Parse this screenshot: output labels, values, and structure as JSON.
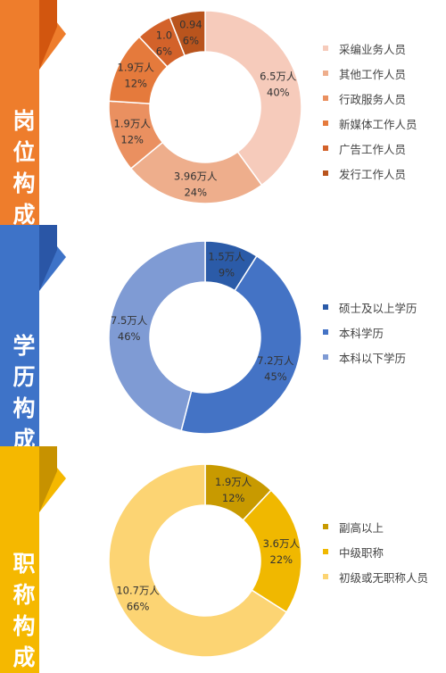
{
  "colors": {
    "orange_band": "#ee7d2c",
    "orange_dark": "#d2560f",
    "blue_band": "#3e73c8",
    "blue_dark": "#2a56a6",
    "yellow_band": "#f5b800",
    "yellow_dark": "#c79200"
  },
  "sections": [
    {
      "title": "岗位构成",
      "title_chars": [
        "岗",
        "位",
        "构",
        "成"
      ]
    },
    {
      "title": "学历构成",
      "title_chars": [
        "学",
        "历",
        "构",
        "成"
      ]
    },
    {
      "title": "职称构成",
      "title_chars": [
        "职",
        "称",
        "构",
        "成"
      ]
    }
  ],
  "chart_data": [
    {
      "type": "pie",
      "title": "岗位构成",
      "donut": true,
      "slices": [
        {
          "name": "采编业务人员",
          "value": 6.5,
          "value_label": "6.5万人",
          "percent": 40,
          "percent_label": "40%",
          "color": "#f6cbbb"
        },
        {
          "name": "其他工作人员",
          "value": 3.96,
          "value_label": "3.96万人",
          "percent": 24,
          "percent_label": "24%",
          "color": "#eeae8c"
        },
        {
          "name": "行政服务人员",
          "value": 1.9,
          "value_label": "1.9万人",
          "percent": 12,
          "percent_label": "12%",
          "color": "#ea9060"
        },
        {
          "name": "新媒体工作人员",
          "value": 1.9,
          "value_label": "1.9万人",
          "percent": 12,
          "percent_label": "12%",
          "color": "#e57a3c"
        },
        {
          "name": "广告工作人员",
          "value": 1.0,
          "value_label": "1.0",
          "percent": 6,
          "percent_label": "6%",
          "color": "#d3622a"
        },
        {
          "name": "发行工作人员",
          "value": 0.94,
          "value_label": "0.94",
          "percent": 6,
          "percent_label": "6%",
          "color": "#b9541d"
        }
      ],
      "legend": [
        "采编业务人员",
        "其他工作人员",
        "行政服务人员",
        "新媒体工作人员",
        "广告工作人员",
        "发行工作人员"
      ]
    },
    {
      "type": "pie",
      "title": "学历构成",
      "donut": true,
      "slices": [
        {
          "name": "硕士及以上学历",
          "value": 1.5,
          "value_label": "1.5万人",
          "percent": 9,
          "percent_label": "9%",
          "color": "#2b5ba8"
        },
        {
          "name": "本科学历",
          "value": 7.2,
          "value_label": "7.2万人",
          "percent": 45,
          "percent_label": "45%",
          "color": "#4473c5"
        },
        {
          "name": "本科以下学历",
          "value": 7.5,
          "value_label": "7.5万人",
          "percent": 46,
          "percent_label": "46%",
          "color": "#7f9bd4"
        }
      ],
      "legend": [
        "硕士及以上学历",
        "本科学历",
        "本科以下学历"
      ]
    },
    {
      "type": "pie",
      "title": "职称构成",
      "donut": true,
      "slices": [
        {
          "name": "副高以上",
          "value": 1.9,
          "value_label": "1.9万人",
          "percent": 12,
          "percent_label": "12%",
          "color": "#c89a00"
        },
        {
          "name": "中级职称",
          "value": 3.6,
          "value_label": "3.6万人",
          "percent": 22,
          "percent_label": "22%",
          "color": "#f0b800"
        },
        {
          "name": "初级或无职称人员",
          "value": 10.7,
          "value_label": "10.7万人",
          "percent": 66,
          "percent_label": "66%",
          "color": "#fcd473"
        }
      ],
      "legend": [
        "副高以上",
        "中级职称",
        "初级或无职称人员"
      ]
    }
  ]
}
